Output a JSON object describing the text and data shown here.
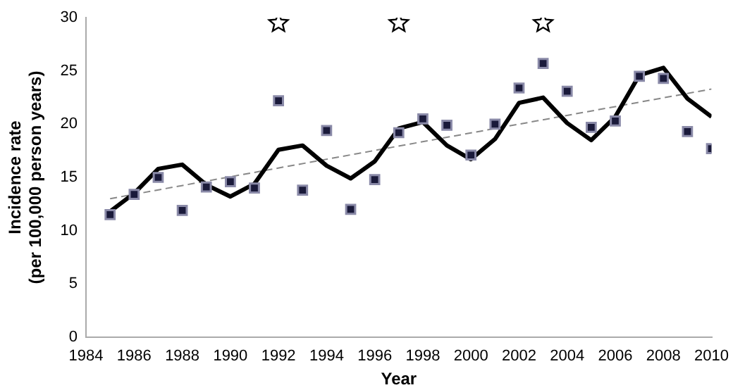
{
  "chart_data": {
    "type": "scatter",
    "xlabel": "Year",
    "ylabel": "Incidence rate\n(per 100,000 person years)",
    "x": [
      1985,
      1986,
      1987,
      1988,
      1989,
      1990,
      1991,
      1992,
      1993,
      1994,
      1995,
      1996,
      1997,
      1998,
      1999,
      2000,
      2001,
      2002,
      2003,
      2004,
      2005,
      2006,
      2007,
      2008,
      2009,
      2010
    ],
    "series": [
      {
        "type": "scatter",
        "color": "#1a1a3a",
        "marker": "square",
        "values": [
          11.5,
          13.4,
          15.0,
          11.9,
          14.1,
          14.6,
          14.0,
          22.2,
          13.8,
          19.4,
          12.0,
          14.8,
          19.2,
          20.5,
          19.9,
          17.1,
          20.0,
          23.4,
          25.7,
          23.1,
          19.7,
          20.3,
          24.5,
          24.3,
          19.3,
          17.7
        ]
      },
      {
        "type": "line",
        "color": "#000000",
        "marker": "none",
        "line_style": "solid",
        "values": [
          11.8,
          13.5,
          15.8,
          16.2,
          14.3,
          13.2,
          14.4,
          17.6,
          18.0,
          16.1,
          14.9,
          16.5,
          19.6,
          20.2,
          18.0,
          16.7,
          18.6,
          22.0,
          22.5,
          20.1,
          18.5,
          20.7,
          24.6,
          25.3,
          22.4,
          20.7
        ]
      },
      {
        "type": "line",
        "color": "#888888",
        "marker": "none",
        "line_style": "dashed",
        "x": [
          1985,
          2010
        ],
        "values": [
          13.0,
          23.3
        ]
      },
      {
        "color": "#000000",
        "marker": "star",
        "x": [
          1992,
          1997,
          2003
        ],
        "values": [
          29.5,
          29.5,
          29.5
        ]
      }
    ],
    "xlim": [
      1984,
      2010
    ],
    "xticks": [
      1984,
      1986,
      1988,
      1990,
      1992,
      1994,
      1996,
      1998,
      2000,
      2002,
      2004,
      2006,
      2008,
      2010
    ],
    "ylim": [
      0,
      30
    ],
    "yticks": [
      0,
      5,
      10,
      15,
      20,
      25,
      30
    ],
    "grid": false,
    "legend": false
  }
}
